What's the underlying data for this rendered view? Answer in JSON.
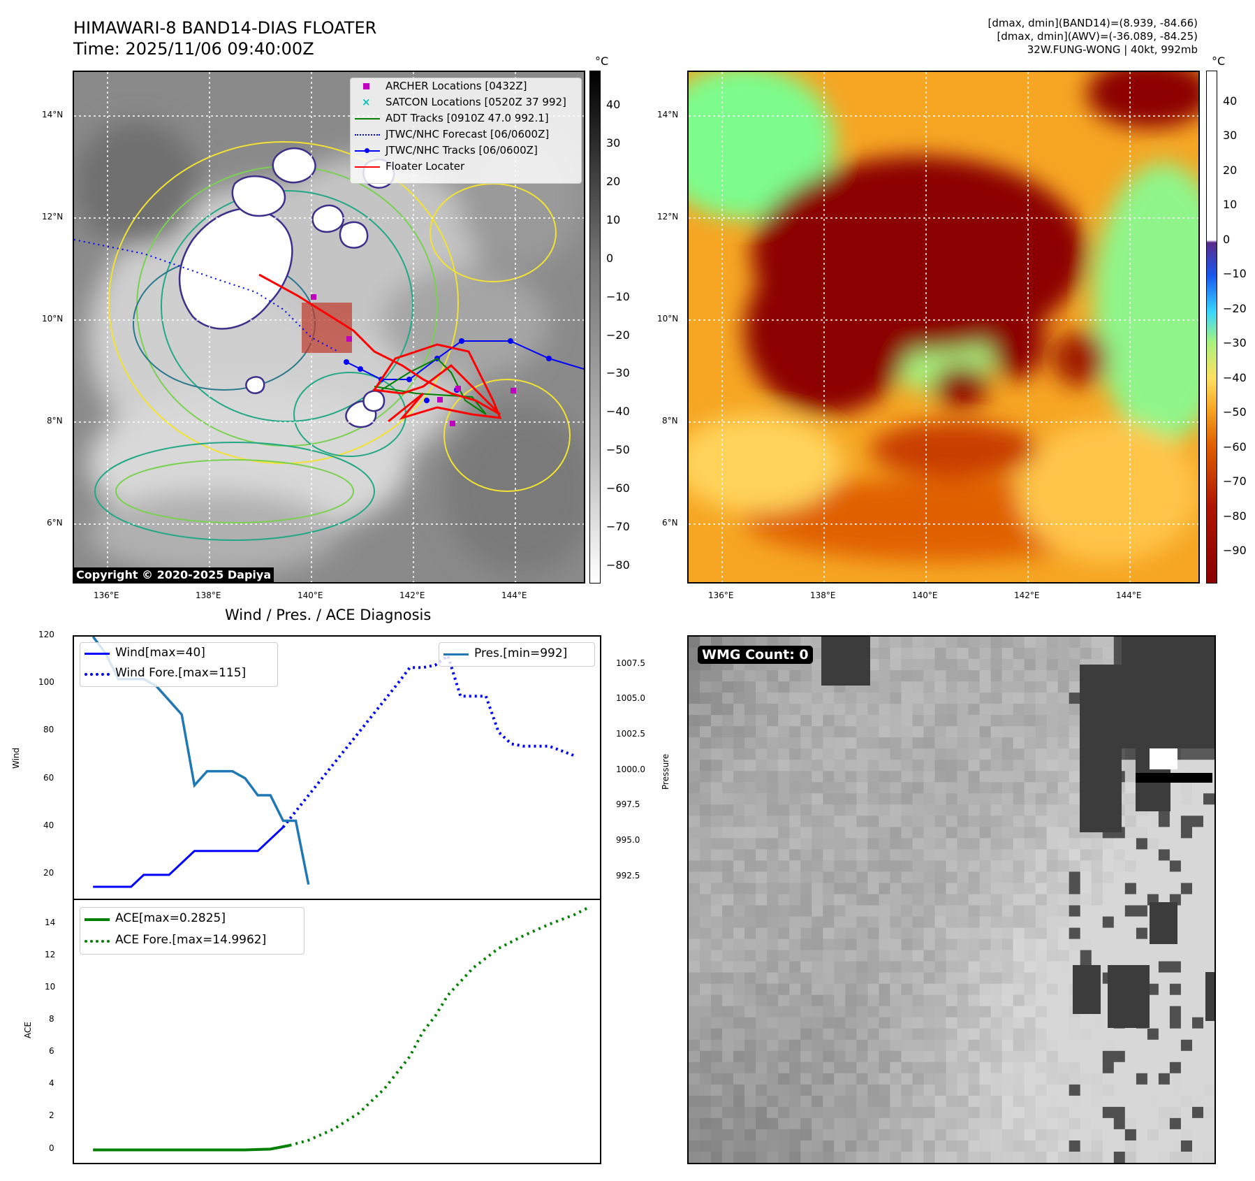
{
  "header": {
    "title_line1": "HIMAWARI-8 BAND14-DIAS FLOATER",
    "title_line2": "Time: 2025/11/06 09:40:00Z",
    "info_line1": "[dmax, dmin](BAND14)=(8.939, -84.66)",
    "info_line2": "[dmax, dmin](AWV)=(-36.089, -84.25)",
    "info_line3": "32W.FUNG-WONG | 40kt, 992mb"
  },
  "map_axes": {
    "lon_labels": [
      "136°E",
      "138°E",
      "140°E",
      "142°E",
      "144°E"
    ],
    "lat_labels": [
      "14°N",
      "12°N",
      "10°N",
      "8°N",
      "6°N"
    ]
  },
  "left_map": {
    "legend": [
      {
        "label": "ARCHER Locations [0432Z]",
        "color": "#bf00bf",
        "kind": "square"
      },
      {
        "label": "SATCON Locations [0520Z 37 992]",
        "color": "#00bfbf",
        "kind": "x"
      },
      {
        "label": "ADT Tracks [0910Z 47.0 992.1]",
        "color": "#008000",
        "kind": "line"
      },
      {
        "label": "JTWC/NHC Forecast [06/0600Z]",
        "color": "#0000ff",
        "kind": "dotted"
      },
      {
        "label": "JTWC/NHC Tracks [06/0600Z]",
        "color": "#0000ff",
        "kind": "line-dot"
      },
      {
        "label": "Floater Locater",
        "color": "#ff0000",
        "kind": "line"
      }
    ],
    "copyright": "Copyright © 2020-2025 Dapiya",
    "colorbar_unit": "°C",
    "colorbar_ticks": [
      "40",
      "30",
      "20",
      "10",
      "0",
      "−10",
      "−20",
      "−30",
      "−40",
      "−50",
      "−60",
      "−70",
      "−80"
    ]
  },
  "right_map": {
    "colorbar_unit": "°C",
    "colorbar_ticks": [
      "40",
      "30",
      "20",
      "10",
      "0",
      "−10",
      "−20",
      "−30",
      "−40",
      "−50",
      "−60",
      "−70",
      "−80",
      "−90"
    ]
  },
  "chart_data": [
    {
      "type": "line",
      "title": "Wind / Pres. / ACE Diagnosis",
      "ylabel": "Wind",
      "ylabel2": "Pressure",
      "ylim": [
        10,
        120
      ],
      "ylim2": [
        991.0,
        1009.5
      ],
      "yticks": [
        "120",
        "100",
        "80",
        "60",
        "40",
        "20"
      ],
      "yticks2": [
        "1007.5",
        "1005.0",
        "1002.5",
        "1000.0",
        "997.5",
        "995.0",
        "992.5"
      ],
      "x": [
        0,
        1,
        2,
        3,
        4,
        5,
        6,
        7,
        8,
        9,
        10,
        11,
        12,
        13,
        14,
        15,
        16,
        17,
        18,
        19,
        20,
        21,
        22,
        23,
        24,
        25,
        26,
        27,
        28,
        29,
        30,
        31,
        32,
        33,
        34,
        35,
        36,
        37,
        38,
        39,
        40
      ],
      "legend_left": [
        "Wind[max=40]",
        "Wind Fore.[max=115]"
      ],
      "legend_right": [
        "Pres.[min=992]"
      ],
      "series": [
        {
          "name": "Wind[max=40]",
          "color": "#0000ff",
          "style": "solid",
          "axis": "left",
          "points": [
            [
              0,
              15
            ],
            [
              1,
              15
            ],
            [
              2,
              15
            ],
            [
              3,
              15
            ],
            [
              4,
              20
            ],
            [
              5,
              20
            ],
            [
              6,
              20
            ],
            [
              7,
              25
            ],
            [
              8,
              30
            ],
            [
              9,
              30
            ],
            [
              10,
              30
            ],
            [
              11,
              30
            ],
            [
              12,
              30
            ],
            [
              13,
              30
            ],
            [
              14,
              35
            ],
            [
              15,
              40
            ]
          ]
        },
        {
          "name": "Wind Fore.[max=115]",
          "color": "#0000ff",
          "style": "dotted",
          "axis": "left",
          "points": [
            [
              15,
              40
            ],
            [
              18,
              60
            ],
            [
              21,
              80
            ],
            [
              24,
              100
            ],
            [
              25,
              107
            ],
            [
              26,
              107
            ],
            [
              27,
              108
            ],
            [
              28,
              112
            ],
            [
              29,
              95
            ],
            [
              30,
              95
            ],
            [
              31,
              95
            ],
            [
              32,
              80
            ],
            [
              33,
              75
            ],
            [
              34,
              74
            ],
            [
              35,
              74
            ],
            [
              36,
              74
            ],
            [
              37,
              72
            ],
            [
              38,
              70
            ]
          ]
        },
        {
          "name": "Pres.[min=992]",
          "color": "#1f77b4",
          "style": "solid",
          "axis": "right",
          "points": [
            [
              0,
              1009.5
            ],
            [
              1,
              1008.3
            ],
            [
              2,
              1006.5
            ],
            [
              3,
              1006.5
            ],
            [
              4,
              1006.5
            ],
            [
              5,
              1006.0
            ],
            [
              6,
              1005.0
            ],
            [
              7,
              1004.0
            ],
            [
              8,
              999.0
            ],
            [
              9,
              1000.0
            ],
            [
              10,
              1000.0
            ],
            [
              11,
              1000.0
            ],
            [
              12,
              999.5
            ],
            [
              13,
              998.3
            ],
            [
              14,
              998.3
            ],
            [
              15,
              996.5
            ],
            [
              16,
              996.5
            ],
            [
              17,
              992.0
            ]
          ]
        }
      ]
    },
    {
      "type": "line",
      "ylabel": "ACE",
      "ylim": [
        -0.8,
        15.5
      ],
      "yticks": [
        "14",
        "12",
        "10",
        "8",
        "6",
        "4",
        "2",
        "0"
      ],
      "legend": [
        "ACE[max=0.2825]",
        "ACE Fore.[max=14.9962]"
      ],
      "series": [
        {
          "name": "ACE[max=0.2825]",
          "color": "#008000",
          "style": "solid",
          "points": [
            [
              0,
              0
            ],
            [
              4,
              0
            ],
            [
              8,
              0
            ],
            [
              12,
              0
            ],
            [
              14,
              0.05
            ],
            [
              15.5,
              0.28
            ]
          ]
        },
        {
          "name": "ACE Fore.[max=14.9962]",
          "color": "#008000",
          "style": "dotted",
          "points": [
            [
              15.5,
              0.28
            ],
            [
              17,
              0.6
            ],
            [
              19,
              1.3
            ],
            [
              21,
              2.3
            ],
            [
              23,
              3.8
            ],
            [
              25,
              5.8
            ],
            [
              26,
              7.3
            ],
            [
              27,
              8.3
            ],
            [
              28,
              9.6
            ],
            [
              30,
              11.3
            ],
            [
              32,
              12.5
            ],
            [
              34,
              13.3
            ],
            [
              36,
              14.0
            ],
            [
              38,
              14.6
            ],
            [
              39,
              15.0
            ]
          ]
        }
      ]
    }
  ],
  "wmg": {
    "label": "WMG Count: 0"
  }
}
